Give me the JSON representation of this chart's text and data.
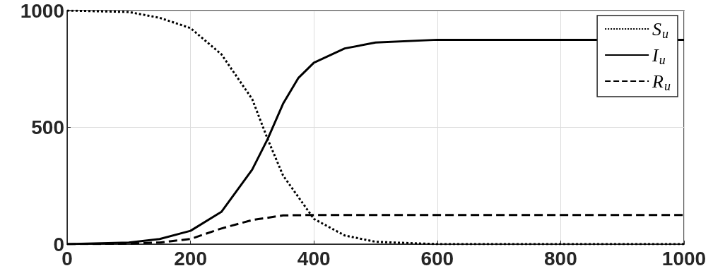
{
  "chart_data": {
    "type": "line",
    "xlim": [
      0,
      1000
    ],
    "ylim": [
      0,
      1000
    ],
    "xticks": [
      0,
      200,
      400,
      600,
      800,
      1000
    ],
    "yticks": [
      0,
      500,
      1000
    ],
    "grid": true,
    "legend": "top right",
    "marker": "none",
    "series": [
      {
        "name": "S$_{u}$",
        "color": "#000000",
        "line_style": "dotted",
        "x": [
          0,
          100,
          150,
          200,
          250,
          300,
          325,
          350,
          400,
          450,
          500,
          600,
          1000
        ],
        "values": [
          1000,
          994,
          969,
          925,
          813,
          621,
          450,
          294,
          108,
          37,
          10,
          0,
          0
        ]
      },
      {
        "name": "I$_{u}$",
        "color": "#000000",
        "line_style": "solid",
        "x": [
          0,
          100,
          150,
          200,
          250,
          300,
          325,
          350,
          375,
          400,
          450,
          500,
          600,
          1000
        ],
        "values": [
          0,
          7,
          22,
          57,
          138,
          319,
          450,
          601,
          712,
          777,
          838,
          863,
          875,
          875
        ]
      },
      {
        "name": "R$_{u}$",
        "color": "#000000",
        "line_style": "dashed",
        "x": [
          0,
          100,
          150,
          200,
          250,
          300,
          350,
          400,
          1000
        ],
        "values": [
          0,
          2,
          7,
          22,
          67,
          103,
          123,
          125,
          125
        ]
      }
    ]
  }
}
